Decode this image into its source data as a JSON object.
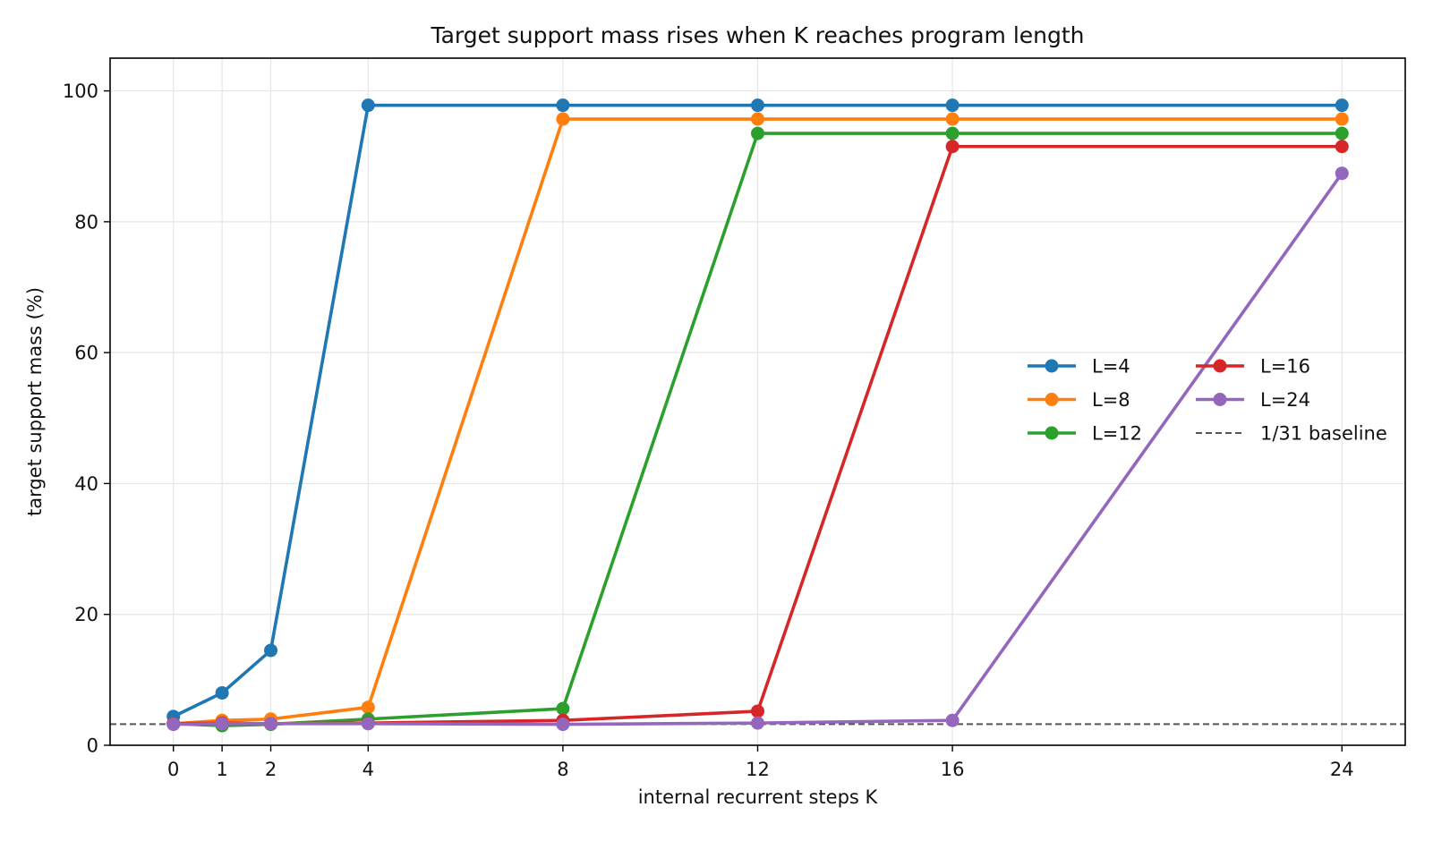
{
  "chart_data": {
    "type": "line",
    "title": "Target support mass rises when K reaches program length",
    "xlabel": "internal recurrent steps K",
    "ylabel": "target support mass (%)",
    "x": [
      0,
      1,
      2,
      4,
      8,
      12,
      16,
      24
    ],
    "x_ticks": [
      0,
      1,
      2,
      4,
      8,
      12,
      16,
      24
    ],
    "y_ticks": [
      0,
      20,
      40,
      60,
      80,
      100
    ],
    "xlim": [
      -1.3,
      25.3
    ],
    "ylim": [
      0,
      105
    ],
    "grid": true,
    "legend_position": "center-right",
    "legend_columns": 2,
    "series": [
      {
        "name": "L=4",
        "color": "#1f77b4",
        "values": [
          4.4,
          8.0,
          14.5,
          97.8,
          97.8,
          97.8,
          97.8,
          97.8
        ]
      },
      {
        "name": "L=8",
        "color": "#ff7f0e",
        "values": [
          3.3,
          3.8,
          4.0,
          5.8,
          95.7,
          95.7,
          95.7,
          95.7
        ]
      },
      {
        "name": "L=12",
        "color": "#2ca02c",
        "values": [
          3.3,
          3.0,
          3.2,
          4.0,
          5.6,
          93.5,
          93.5,
          93.5
        ]
      },
      {
        "name": "L=16",
        "color": "#d62728",
        "values": [
          3.3,
          3.4,
          3.3,
          3.4,
          3.8,
          5.2,
          91.5,
          91.5
        ]
      },
      {
        "name": "L=24",
        "color": "#9467bd",
        "values": [
          3.2,
          3.3,
          3.3,
          3.3,
          3.2,
          3.4,
          3.8,
          87.4
        ]
      }
    ],
    "baseline": {
      "name": "1/31 baseline",
      "value": 3.2258,
      "color": "#555555"
    }
  }
}
